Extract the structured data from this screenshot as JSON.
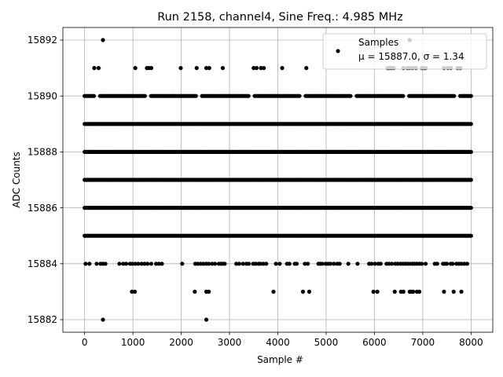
{
  "chart_data": {
    "type": "scatter",
    "title": "Run 2158, channel4, Sine Freq.: 4.985 MHz",
    "xlabel": "Sample #",
    "ylabel": "ADC Counts",
    "xlim": [
      -450,
      8450
    ],
    "ylim": [
      15881.55,
      15892.45
    ],
    "xticks": [
      0,
      1000,
      2000,
      3000,
      4000,
      5000,
      6000,
      7000,
      8000
    ],
    "yticks": [
      15882,
      15884,
      15886,
      15888,
      15890,
      15892
    ],
    "grid": true,
    "legend_position": "top-right",
    "marker_color": "#000000",
    "grid_color": "#b0b0b0",
    "series": [
      {
        "name": "Samples",
        "stats_text": "μ = 15887.0, σ = 1.34",
        "num_samples": 8000,
        "levels": [
          {
            "value": 15882,
            "x": [
              380,
              2520
            ]
          },
          {
            "value": 15883,
            "x": [
              980,
              1040,
              2280,
              2520,
              2570,
              3910,
              4520,
              4650,
              5980,
              6060,
              6420,
              6550,
              6600,
              6730,
              6760,
              6800,
              6880,
              6930,
              7440,
              7640,
              7800
            ]
          },
          {
            "value": 15884,
            "x": [
              20,
              100,
              250,
              330,
              380,
              430,
              720,
              800,
              860,
              940,
              990,
              1050,
              1110,
              1180,
              1240,
              1300,
              1380,
              1480,
              1540,
              1600,
              2020,
              2290,
              2340,
              2400,
              2460,
              2520,
              2570,
              2640,
              2700,
              2780,
              2820,
              2860,
              2900,
              3140,
              3200,
              3280,
              3350,
              3400,
              3490,
              3540,
              3600,
              3640,
              3700,
              3760,
              3960,
              4040,
              4190,
              4240,
              4350,
              4390,
              4560,
              4620,
              4840,
              4880,
              4920,
              4990,
              5040,
              5090,
              5160,
              5230,
              5280,
              5460,
              5650,
              5890,
              5940,
              6010,
              6080,
              6130,
              6250,
              6300,
              6360,
              6430,
              6480,
              6540,
              6590,
              6640,
              6690,
              6740,
              6790,
              6830,
              6880,
              6930,
              6980,
              7060,
              7250,
              7300,
              7420,
              7460,
              7500,
              7580,
              7620,
              7700,
              7750,
              7800,
              7860,
              7920
            ]
          },
          {
            "value": 15885,
            "density": "continuous",
            "x_range": [
              0,
              8000
            ]
          },
          {
            "value": 15886,
            "density": "continuous",
            "x_range": [
              0,
              8000
            ]
          },
          {
            "value": 15887,
            "density": "continuous",
            "x_range": [
              0,
              8000
            ]
          },
          {
            "value": 15888,
            "density": "continuous",
            "x_range": [
              0,
              8000
            ]
          },
          {
            "value": 15889,
            "density": "continuous",
            "x_range": [
              0,
              8000
            ]
          },
          {
            "value": 15890,
            "density": "near-continuous",
            "x_range": [
              0,
              8000
            ]
          },
          {
            "value": 15891,
            "x": [
              200,
              290,
              1050,
              1290,
              1330,
              1380,
              1990,
              2320,
              2520,
              2580,
              2860,
              3500,
              3560,
              3650,
              3710,
              4090,
              4590,
              6270,
              6310,
              6350,
              6400,
              6600,
              6680,
              6730,
              6790,
              6860,
              6980,
              7030,
              7060,
              7440,
              7520,
              7580,
              7720,
              7780
            ]
          },
          {
            "value": 15892,
            "x": [
              380,
              6730
            ]
          }
        ]
      }
    ]
  }
}
